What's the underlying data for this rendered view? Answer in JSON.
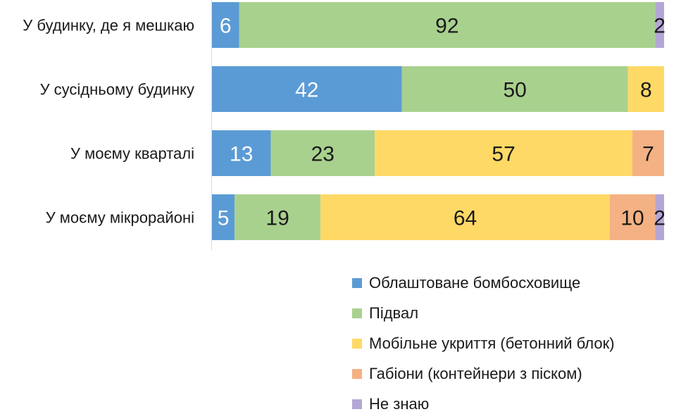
{
  "chart_data": {
    "type": "bar",
    "orientation": "horizontal",
    "stacked": true,
    "categories": [
      "У будинку, де я мешкаю",
      "У сусідньому будинку",
      "У моєму кварталі",
      "У моєму мікрорайоні"
    ],
    "series": [
      {
        "name": "Облаштоване бомбосховище",
        "color": "#5b9bd5",
        "label_color": "#ffffff",
        "values": [
          6,
          42,
          13,
          5
        ]
      },
      {
        "name": "Підвал",
        "color": "#a9d18e",
        "label_color": "#1a1a1a",
        "values": [
          92,
          50,
          23,
          19
        ]
      },
      {
        "name": "Мобільне укриття (бетонний блок)",
        "color": "#ffd966",
        "label_color": "#1a1a1a",
        "values": [
          0,
          8,
          57,
          64
        ]
      },
      {
        "name": "Габіони (контейнери з піском)",
        "color": "#f4b183",
        "label_color": "#1a1a1a",
        "values": [
          0,
          0,
          7,
          10
        ]
      },
      {
        "name": "Не знаю",
        "color": "#b4a7d6",
        "label_color": "#1a1a1a",
        "values": [
          2,
          0,
          0,
          2
        ]
      }
    ],
    "xlim": [
      0,
      100
    ],
    "grid": false,
    "legend_position": "bottom-right"
  }
}
